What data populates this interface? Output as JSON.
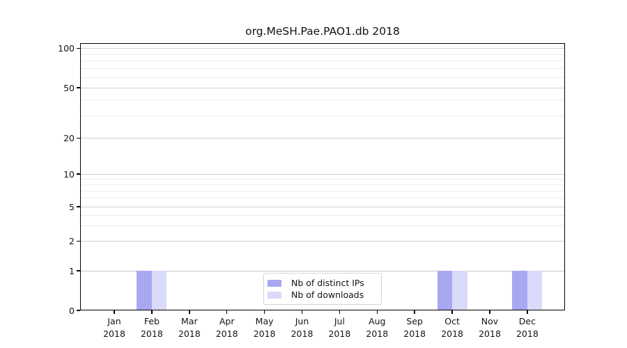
{
  "chart_data": {
    "type": "bar",
    "title": "org.MeSH.Pae.PAO1.db 2018",
    "categories": [
      "Jan 2018",
      "Feb 2018",
      "Mar 2018",
      "Apr 2018",
      "May 2018",
      "Jun 2018",
      "Jul 2018",
      "Aug 2018",
      "Sep 2018",
      "Oct 2018",
      "Nov 2018",
      "Dec 2018"
    ],
    "series": [
      {
        "name": "Nb of distinct IPs",
        "color": "#a8a8f2",
        "values": [
          0,
          1,
          0,
          0,
          0,
          0,
          0,
          0,
          0,
          1,
          0,
          1
        ]
      },
      {
        "name": "Nb of downloads",
        "color": "#dadafa",
        "values": [
          0,
          1,
          0,
          0,
          0,
          0,
          0,
          0,
          0,
          1,
          0,
          1
        ]
      }
    ],
    "xlabel": "",
    "ylabel": "",
    "y_axis": {
      "scale": "symlog",
      "major_ticks": [
        0,
        1,
        2,
        5,
        10,
        20,
        50,
        100
      ],
      "minor_gridlines": [
        3,
        4,
        6,
        7,
        8,
        9,
        30,
        40,
        60,
        70,
        80,
        90
      ],
      "ylim": [
        0,
        110
      ]
    },
    "grid": true,
    "legend_position": "lower center"
  }
}
